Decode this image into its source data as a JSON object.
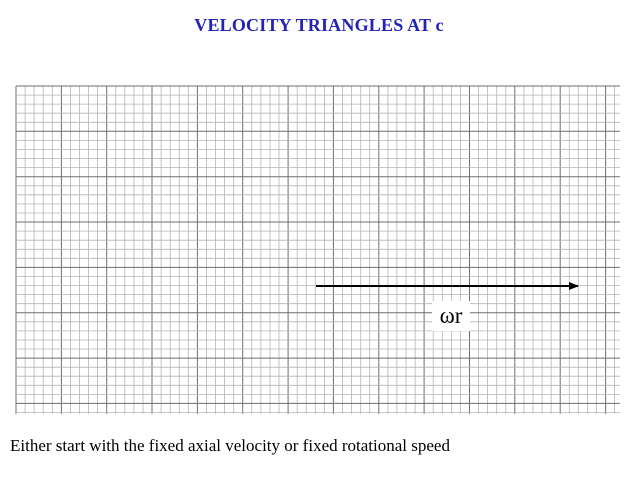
{
  "slide": {
    "title": "VELOCITY TRIANGLES AT c",
    "caption": "Either start with the fixed axial velocity or fixed rotational speed"
  },
  "diagram": {
    "type": "graph-paper",
    "major_every_n_cells": 5,
    "vectors": [
      {
        "name": "blade-speed-vector",
        "label": "ωr",
        "direction": "right",
        "color": "#000000"
      }
    ]
  },
  "colors": {
    "title": "#2323b4",
    "grid_minor": "#b4b4b4",
    "grid_major": "#6e6e6e",
    "vector": "#000000"
  }
}
